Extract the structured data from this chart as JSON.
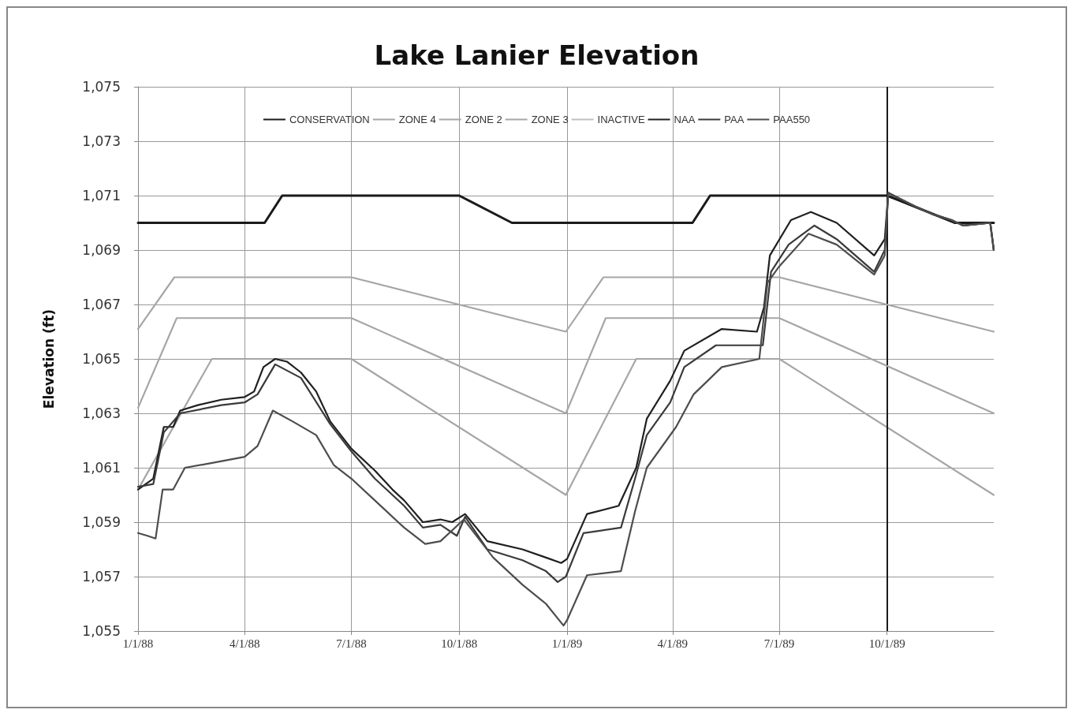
{
  "chart_data": {
    "type": "line",
    "title": "Lake Lanier Elevation",
    "ylabel": "Elevation (ft)",
    "xlim": [
      "1988-01-01",
      "1989-12-31"
    ],
    "xticks": [
      {
        "value": "1988-01-01",
        "label": "1/1/88"
      },
      {
        "value": "1988-04-01",
        "label": "4/1/88"
      },
      {
        "value": "1988-07-01",
        "label": "7/1/88"
      },
      {
        "value": "1988-10-01",
        "label": "10/1/88"
      },
      {
        "value": "1989-01-01",
        "label": "1/1/89"
      },
      {
        "value": "1989-04-01",
        "label": "4/1/89"
      },
      {
        "value": "1989-07-01",
        "label": "7/1/89"
      },
      {
        "value": "1989-10-01",
        "label": "10/1/89"
      }
    ],
    "ylim": [
      1055,
      1075
    ],
    "yticks": [
      {
        "value": 1055,
        "label": "1,055"
      },
      {
        "value": 1057,
        "label": "1,057"
      },
      {
        "value": 1059,
        "label": "1,059"
      },
      {
        "value": 1061,
        "label": "1,061"
      },
      {
        "value": 1063,
        "label": "1,063"
      },
      {
        "value": 1065,
        "label": "1,065"
      },
      {
        "value": 1067,
        "label": "1,067"
      },
      {
        "value": 1069,
        "label": "1,069"
      },
      {
        "value": 1071,
        "label": "1,071"
      },
      {
        "value": 1073,
        "label": "1,073"
      },
      {
        "value": 1075,
        "label": "1,075"
      }
    ],
    "grid": true,
    "legend": "top",
    "marker": "none",
    "line_style": "solid",
    "ref_lines": [
      {
        "axis": "x",
        "value": "1989-10-01",
        "color": "#1a1a1a"
      }
    ],
    "series": [
      {
        "name": "CONSERVATION",
        "color": "#1a1a1a",
        "x": [
          "1988-01-01",
          "1988-04-18",
          "1988-05-03",
          "1988-10-01",
          "1988-11-15",
          "1989-04-18",
          "1989-05-03",
          "1989-10-01",
          "1989-11-28",
          "1989-12-31"
        ],
        "values": [
          1070,
          1070,
          1071,
          1071,
          1070,
          1070,
          1071,
          1071,
          1070,
          1070
        ]
      },
      {
        "name": "ZONE 4",
        "color": "#a6a6a6",
        "x": [
          "1988-01-01",
          "1988-03-04",
          "1988-07-01",
          "1988-12-31",
          "1989-03-01",
          "1989-07-01",
          "1989-12-31"
        ],
        "values": [
          1060.2,
          1065,
          1065,
          1060,
          1065,
          1065,
          1060
        ]
      },
      {
        "name": "ZONE 2",
        "color": "#a6a6a6",
        "x": [
          "1988-01-01",
          "1988-02-01",
          "1988-07-01",
          "1988-12-31",
          "1989-02-01",
          "1989-07-01",
          "1989-12-31"
        ],
        "values": [
          1066.1,
          1068,
          1068,
          1066,
          1068,
          1068,
          1066
        ]
      },
      {
        "name": "ZONE 3",
        "color": "#a6a6a6",
        "x": [
          "1988-01-01",
          "1988-02-03",
          "1988-07-01",
          "1988-12-31",
          "1989-02-03",
          "1989-07-01",
          "1989-12-31"
        ],
        "values": [
          1063.2,
          1066.5,
          1066.5,
          1063,
          1066.5,
          1066.5,
          1063
        ]
      },
      {
        "name": "INACTIVE",
        "color": "#bfbfbf"
      },
      {
        "name": "NAA",
        "color": "#1f1f1f",
        "x": [
          "1988-01-01",
          "1988-01-14",
          "1988-01-23",
          "1988-01-31",
          "1988-02-06",
          "1988-02-21",
          "1988-03-12",
          "1988-04-01",
          "1988-04-09",
          "1988-04-17",
          "1988-04-27",
          "1988-05-07",
          "1988-05-19",
          "1988-06-01",
          "1988-06-13",
          "1988-07-01",
          "1988-07-21",
          "1988-08-05",
          "1988-08-15",
          "1988-08-31",
          "1988-09-15",
          "1988-09-25",
          "1988-10-06",
          "1988-10-25",
          "1988-11-24",
          "1988-12-14",
          "1988-12-27",
          "1989-01-01",
          "1989-01-18",
          "1989-02-14",
          "1989-03-01",
          "1989-03-10",
          "1989-03-30",
          "1989-04-11",
          "1989-05-13",
          "1989-06-12",
          "1989-06-18",
          "1989-06-23",
          "1989-07-11",
          "1989-07-28",
          "1989-08-19",
          "1989-09-20",
          "1989-09-29",
          "1989-10-02",
          "1989-10-25",
          "1989-11-10",
          "1989-11-25",
          "1989-12-05",
          "1989-12-28",
          "1989-12-31"
        ],
        "values": [
          1060.2,
          1060.6,
          1062.5,
          1062.5,
          1063.1,
          1063.3,
          1063.5,
          1063.6,
          1063.8,
          1064.7,
          1065,
          1064.9,
          1064.5,
          1063.8,
          1062.7,
          1061.7,
          1060.9,
          1060.2,
          1059.8,
          1059,
          1059.1,
          1059,
          1059.3,
          1058.3,
          1058,
          1057.7,
          1057.5,
          1057.65,
          1059.3,
          1059.6,
          1061,
          1062.8,
          1064.2,
          1065.3,
          1066.1,
          1066,
          1066.9,
          1068.8,
          1070.1,
          1070.4,
          1070,
          1068.8,
          1069.4,
          1071.1,
          1070.6,
          1070.3,
          1070.1,
          1069.9,
          1070,
          1069
        ]
      },
      {
        "name": "PAA",
        "color": "#3a3a3a",
        "x": [
          "1988-01-01",
          "1988-01-14",
          "1988-01-23",
          "1988-02-06",
          "1988-03-12",
          "1988-04-01",
          "1988-04-12",
          "1988-04-27",
          "1988-05-19",
          "1988-06-13",
          "1988-07-01",
          "1988-07-21",
          "1988-08-15",
          "1988-08-31",
          "1988-09-15",
          "1988-09-29",
          "1988-10-06",
          "1988-10-25",
          "1988-11-24",
          "1988-12-14",
          "1988-12-24",
          "1988-12-31",
          "1989-01-15",
          "1989-02-16",
          "1989-02-28",
          "1989-03-10",
          "1989-03-30",
          "1989-04-11",
          "1989-05-08",
          "1989-06-17",
          "1989-06-24",
          "1989-07-09",
          "1989-07-31",
          "1989-08-19",
          "1989-09-20",
          "1989-09-29",
          "1989-10-02",
          "1989-10-25",
          "1989-11-10",
          "1989-11-25",
          "1989-12-05",
          "1989-12-28",
          "1989-12-31"
        ],
        "values": [
          1060.3,
          1060.4,
          1062.3,
          1063,
          1063.3,
          1063.4,
          1063.7,
          1064.8,
          1064.3,
          1062.6,
          1061.6,
          1060.6,
          1059.6,
          1058.8,
          1058.9,
          1058.5,
          1059.2,
          1058,
          1057.6,
          1057.2,
          1056.8,
          1057,
          1058.6,
          1058.8,
          1060.6,
          1062.2,
          1063.4,
          1064.7,
          1065.5,
          1065.5,
          1068.2,
          1069.2,
          1069.9,
          1069.4,
          1068.2,
          1069,
          1071.1,
          1070.6,
          1070.3,
          1070.1,
          1069.9,
          1070,
          1069
        ]
      },
      {
        "name": "PAA550",
        "color": "#4d4d4d",
        "x": [
          "1988-01-01",
          "1988-01-09",
          "1988-01-16",
          "1988-01-22",
          "1988-01-31",
          "1988-02-10",
          "1988-03-07",
          "1988-04-01",
          "1988-04-12",
          "1988-04-25",
          "1988-05-12",
          "1988-06-01",
          "1988-06-16",
          "1988-07-01",
          "1988-07-21",
          "1988-08-15",
          "1988-09-02",
          "1988-09-15",
          "1988-10-05",
          "1988-10-30",
          "1988-11-24",
          "1988-12-14",
          "1988-12-29",
          "1989-01-01",
          "1989-01-18",
          "1989-02-16",
          "1989-02-28",
          "1989-03-10",
          "1989-04-04",
          "1989-04-19",
          "1989-05-13",
          "1989-06-14",
          "1989-06-21",
          "1989-07-01",
          "1989-07-26",
          "1989-08-19",
          "1989-09-20",
          "1989-09-29",
          "1989-10-02",
          "1989-10-25",
          "1989-11-10",
          "1989-11-25",
          "1989-12-05",
          "1989-12-28",
          "1989-12-31"
        ],
        "values": [
          1058.6,
          1058.5,
          1058.4,
          1060.2,
          1060.2,
          1061,
          1061.2,
          1061.4,
          1061.8,
          1063.1,
          1062.7,
          1062.2,
          1061.1,
          1060.6,
          1059.8,
          1058.8,
          1058.2,
          1058.3,
          1059.1,
          1057.7,
          1056.7,
          1056,
          1055.2,
          1055.4,
          1057.05,
          1057.2,
          1059.4,
          1061,
          1062.5,
          1063.7,
          1064.7,
          1065,
          1067.8,
          1068.4,
          1069.6,
          1069.2,
          1068.1,
          1068.8,
          1071.1,
          1070.6,
          1070.3,
          1070.1,
          1069.9,
          1070,
          1069
        ]
      }
    ]
  }
}
